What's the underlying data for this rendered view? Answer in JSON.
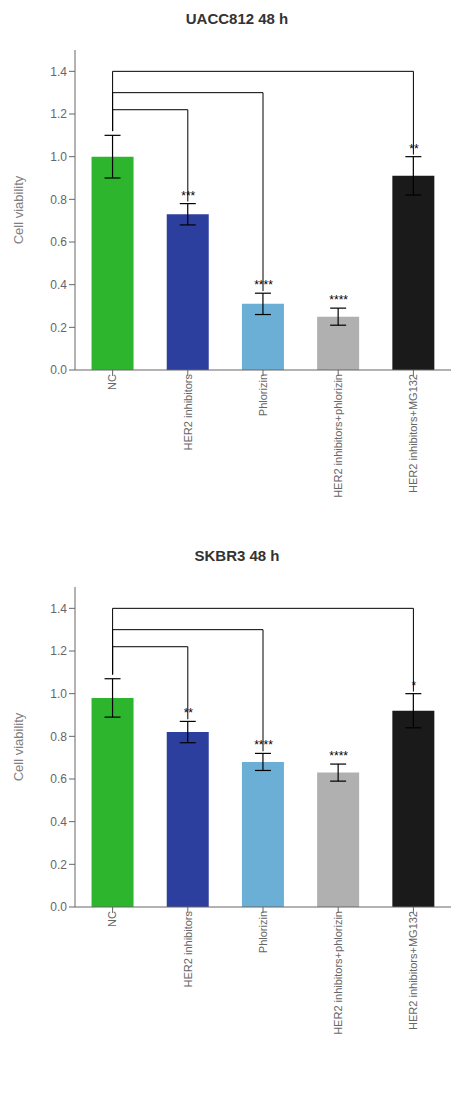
{
  "chart_data": [
    {
      "type": "bar",
      "title": "UACC812 48 h",
      "categories": [
        "NC",
        "HER2 inhibitors",
        "Phlorizin",
        "HER2 inhibitors+phlorizin",
        "HER2 inhibitors+MG132"
      ],
      "values": [
        1.0,
        0.73,
        0.31,
        0.25,
        0.91
      ],
      "errors": [
        0.1,
        0.05,
        0.05,
        0.04,
        0.09
      ],
      "colors": [
        "#2db52d",
        "#2d3f9e",
        "#6baed6",
        "#b0b0b0",
        "#1a1a1a"
      ],
      "significance": [
        null,
        "***",
        "****",
        "****",
        "**"
      ],
      "ylim": [
        0,
        1.5
      ],
      "yticks": [
        {
          "value": 0.0,
          "label": "0.0"
        },
        0.2,
        0.4,
        0.6,
        0.8,
        {
          "value": 1.0,
          "label": "1.0"
        },
        1.2,
        1.4
      ],
      "ylabel": "Cell viability",
      "grid": false,
      "brackets": [
        {
          "from": "NC",
          "to": "HER2 inhibitors",
          "top": 1.22,
          "left": 1.12,
          "right": 0.79
        },
        {
          "from": "NC",
          "to": "Phlorizin",
          "top": 1.3,
          "left": 1.12,
          "right": 0.37
        },
        {
          "from": "NC",
          "to": "HER2 inhibitors+MG132",
          "top": 1.4,
          "left": 1.12,
          "right": 1.01
        }
      ]
    },
    {
      "type": "bar",
      "title": "SKBR3 48 h",
      "categories": [
        "NC",
        "HER2 inhibitors",
        "Phlorizin",
        "HER2 inhibitors+phlorizin",
        "HER2 inhibitors+MG132"
      ],
      "values": [
        0.98,
        0.82,
        0.68,
        0.63,
        0.92
      ],
      "errors": [
        0.09,
        0.05,
        0.04,
        0.04,
        0.08
      ],
      "colors": [
        "#2db52d",
        "#2d3f9e",
        "#6baed6",
        "#b0b0b0",
        "#1a1a1a"
      ],
      "significance": [
        null,
        "**",
        "****",
        "****",
        "*"
      ],
      "ylim": [
        0,
        1.5
      ],
      "yticks": [
        {
          "value": 0.0,
          "label": "0.0"
        },
        0.2,
        0.4,
        0.6,
        0.8,
        {
          "value": 1.0,
          "label": "1.0"
        },
        1.2,
        1.4
      ],
      "ylabel": "Cell viability",
      "grid": false,
      "brackets": [
        {
          "from": "NC",
          "to": "HER2 inhibitors",
          "top": 1.22,
          "left": 1.09,
          "right": 0.88
        },
        {
          "from": "NC",
          "to": "Phlorizin",
          "top": 1.3,
          "left": 1.09,
          "right": 0.73
        },
        {
          "from": "NC",
          "to": "HER2 inhibitors+MG132",
          "top": 1.4,
          "left": 1.09,
          "right": 1.01
        }
      ]
    }
  ]
}
